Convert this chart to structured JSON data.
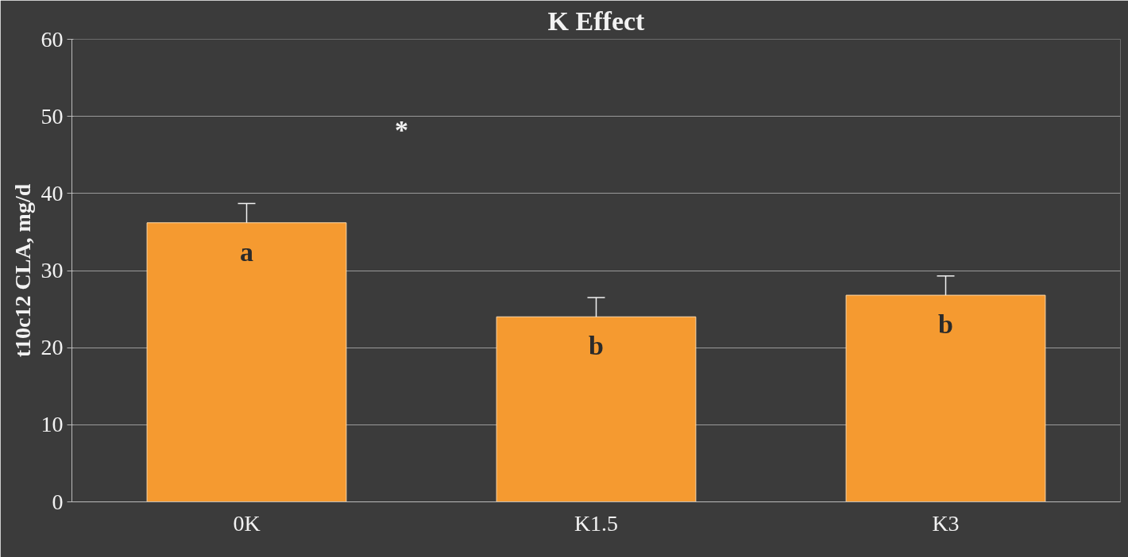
{
  "chart_data": {
    "type": "bar",
    "title": "K Effect",
    "ylabel": "t10c12 CLA, mg/d",
    "categories": [
      "0K",
      "K1.5",
      "K3"
    ],
    "values": [
      36.2,
      24.0,
      26.8
    ],
    "errors": [
      [
        36.2,
        38.7
      ],
      [
        24.0,
        26.5
      ],
      [
        26.8,
        29.3
      ]
    ],
    "color": "#f59a30",
    "ylim": [
      0,
      60
    ],
    "yticks": [
      0,
      10,
      20,
      30,
      40,
      50,
      60
    ],
    "grid": "y",
    "annotations": [
      {
        "text": "a",
        "x": "0K",
        "y": 36.2
      },
      {
        "text": "b",
        "x": "K1.5",
        "y": 24.0
      },
      {
        "text": "b",
        "x": "K3",
        "y": 26.8
      },
      "*"
    ]
  }
}
